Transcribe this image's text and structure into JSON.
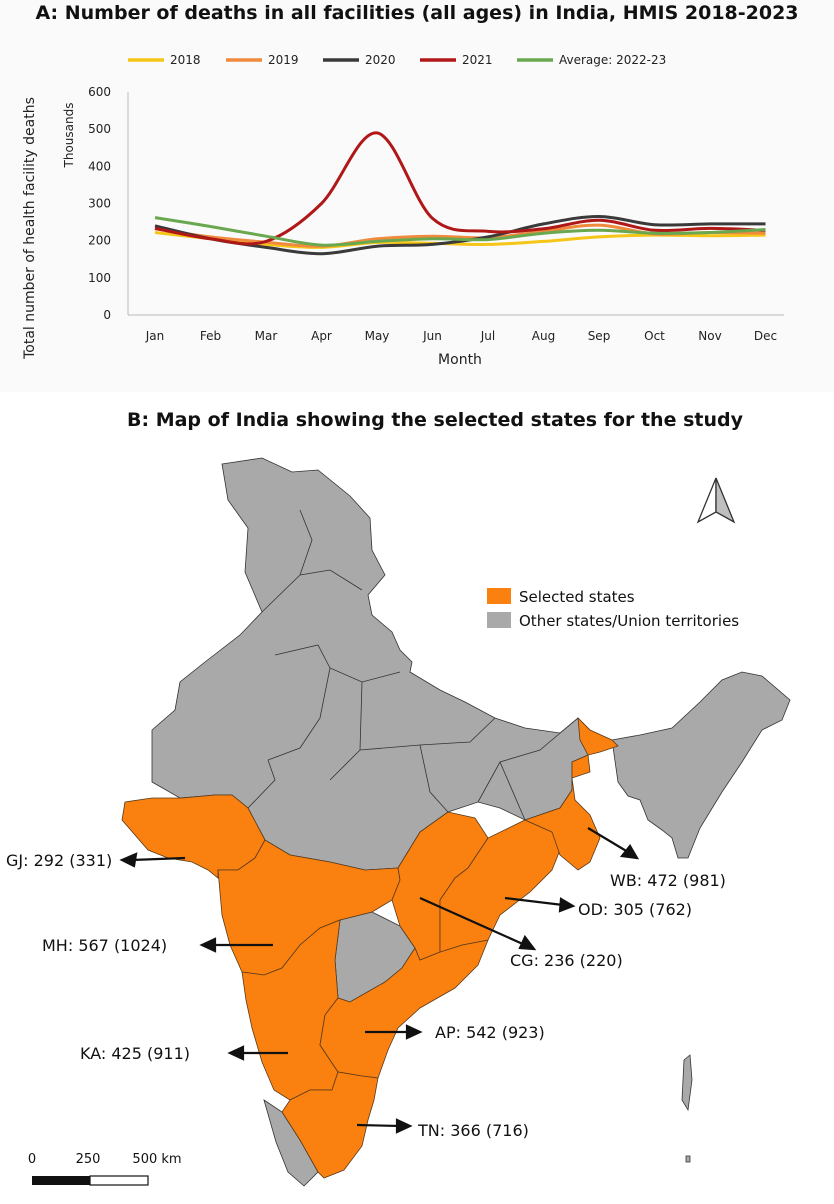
{
  "chart_data": {
    "type": "line",
    "title": "A: Number of deaths in all facilities (all ages) in India, HMIS 2018-2023",
    "xlabel": "Month",
    "ylabel": "Total number of health facility deaths",
    "ylabel_unit": "Thousands",
    "ylim": [
      0,
      600
    ],
    "yticks": [
      0,
      100,
      200,
      300,
      400,
      500,
      600
    ],
    "categories": [
      "Jan",
      "Feb",
      "Mar",
      "Apr",
      "May",
      "Jun",
      "Jul",
      "Aug",
      "Sep",
      "Oct",
      "Nov",
      "Dec"
    ],
    "legend_position": "top",
    "grid": false,
    "series": [
      {
        "name": "2018",
        "color": "#f5c518",
        "values": [
          222,
          205,
          190,
          182,
          195,
          193,
          190,
          198,
          210,
          215,
          213,
          215
        ]
      },
      {
        "name": "2019",
        "color": "#f08a3c",
        "values": [
          232,
          210,
          196,
          185,
          205,
          212,
          208,
          225,
          242,
          218,
          222,
          220
        ]
      },
      {
        "name": "2020",
        "color": "#3a3a3a",
        "values": [
          240,
          205,
          182,
          165,
          185,
          190,
          210,
          245,
          265,
          243,
          245,
          245
        ]
      },
      {
        "name": "2021",
        "color": "#b01818",
        "values": [
          233,
          205,
          198,
          300,
          490,
          260,
          225,
          232,
          255,
          228,
          233,
          228
        ]
      },
      {
        "name": "Average: 2022-23",
        "color": "#6aa84f",
        "values": [
          262,
          238,
          212,
          188,
          198,
          205,
          203,
          220,
          228,
          220,
          222,
          230
        ]
      }
    ]
  },
  "map": {
    "title": "B: Map of India showing the selected states for the study",
    "legend": {
      "selected": {
        "label": "Selected states",
        "color": "#fa8010"
      },
      "other": {
        "label": "Other states/Union territories",
        "color": "#a9a9a9"
      }
    },
    "labels": {
      "gj": "GJ: 292 (331)",
      "mh": "MH: 567 (1024)",
      "ka": "KA: 425 (911)",
      "wb": "WB: 472 (981)",
      "od": "OD: 305 (762)",
      "cg": "CG: 236 (220)",
      "ap": "AP: 542 (923)",
      "tn": "TN: 366 (716)"
    },
    "scale": {
      "t0": "0",
      "t1": "250",
      "t2": "500 km"
    }
  }
}
